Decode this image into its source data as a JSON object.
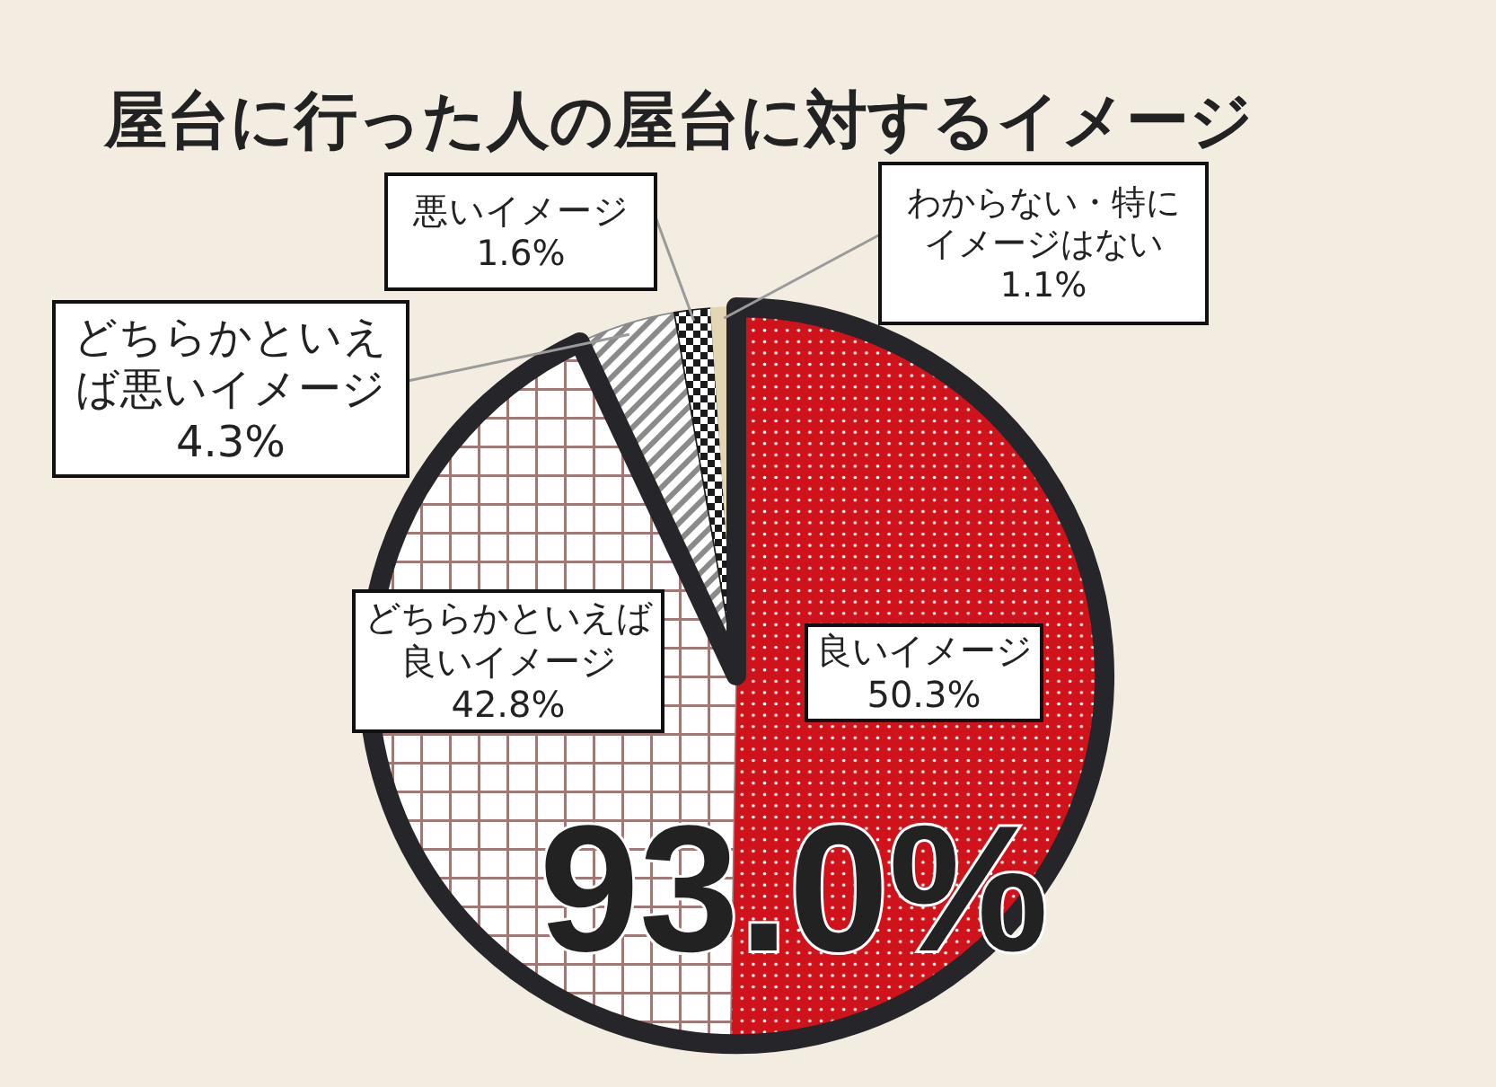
{
  "chart_data": {
    "type": "pie",
    "title": "屋台に行った人の屋台に対するイメージ",
    "categories": [
      "良いイメージ",
      "どちらかといえば良いイメージ",
      "どちらかといえば悪いイメージ",
      "悪いイメージ",
      "わからない・特にイメージはない"
    ],
    "values": [
      50.3,
      42.8,
      4.3,
      1.6,
      1.1
    ],
    "colors": [
      "#d0121b",
      "#a07878",
      "#8a8a8a",
      "#1a1a1a",
      "#e3d6b5"
    ],
    "value_labels": [
      "50.3%",
      "42.8%",
      "4.3%",
      "1.6%",
      "1.1%"
    ],
    "annotations": [
      "93.0%"
    ]
  }
}
